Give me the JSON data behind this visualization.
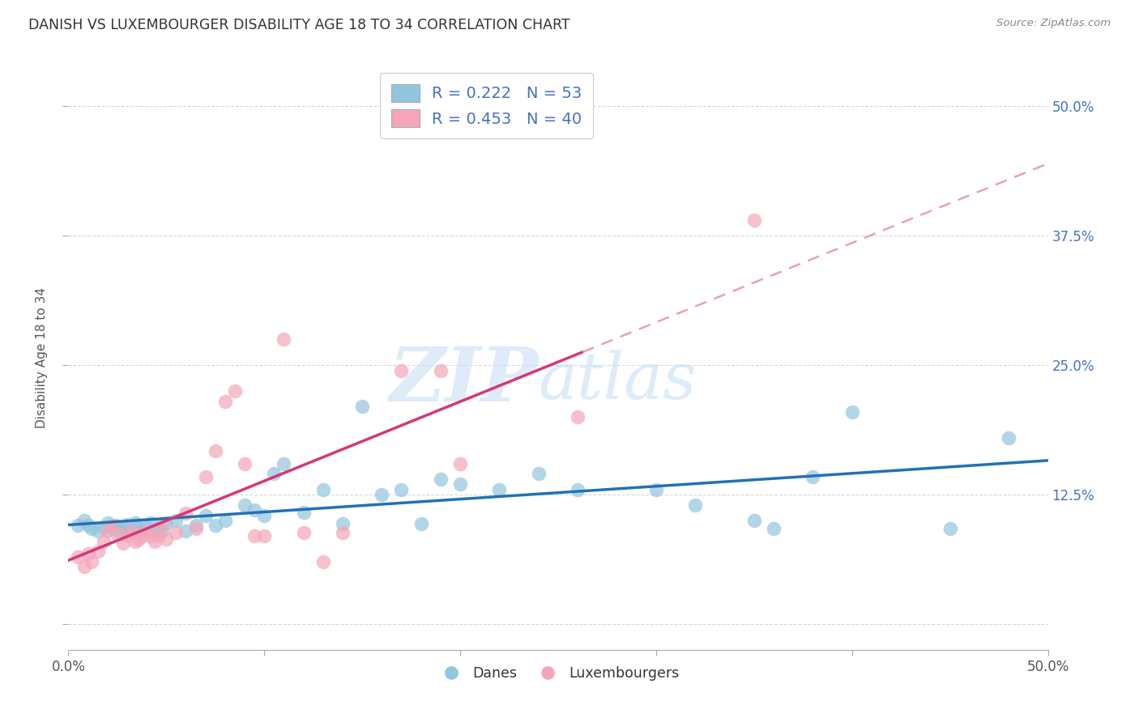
{
  "title": "DANISH VS LUXEMBOURGER DISABILITY AGE 18 TO 34 CORRELATION CHART",
  "source": "Source: ZipAtlas.com",
  "ylabel": "Disability Age 18 to 34",
  "xlim": [
    0.0,
    0.5
  ],
  "ylim": [
    -0.025,
    0.54
  ],
  "ytick_labels": [
    "",
    "12.5%",
    "25.0%",
    "37.5%",
    "50.0%"
  ],
  "ytick_values": [
    0.0,
    0.125,
    0.25,
    0.375,
    0.5
  ],
  "xtick_values": [
    0.0,
    0.1,
    0.2,
    0.3,
    0.4,
    0.5
  ],
  "blue_R": 0.222,
  "blue_N": 53,
  "pink_R": 0.453,
  "pink_N": 40,
  "blue_color": "#92c5de",
  "pink_color": "#f4a6b8",
  "blue_line_color": "#2171b5",
  "pink_line_color": "#d63775",
  "pink_dash_color": "#e8a0bc",
  "watermark_color": "#c8dff5",
  "background_color": "#ffffff",
  "grid_color": "#d8d8d8",
  "blue_scatter_x": [
    0.005,
    0.008,
    0.01,
    0.012,
    0.015,
    0.018,
    0.02,
    0.022,
    0.024,
    0.026,
    0.028,
    0.03,
    0.032,
    0.034,
    0.036,
    0.038,
    0.04,
    0.042,
    0.044,
    0.046,
    0.048,
    0.05,
    0.055,
    0.06,
    0.065,
    0.07,
    0.075,
    0.08,
    0.09,
    0.095,
    0.1,
    0.105,
    0.11,
    0.12,
    0.13,
    0.14,
    0.15,
    0.16,
    0.17,
    0.18,
    0.19,
    0.2,
    0.22,
    0.24,
    0.26,
    0.3,
    0.32,
    0.35,
    0.36,
    0.38,
    0.4,
    0.45,
    0.48
  ],
  "blue_scatter_y": [
    0.095,
    0.1,
    0.095,
    0.092,
    0.09,
    0.093,
    0.098,
    0.092,
    0.095,
    0.09,
    0.093,
    0.096,
    0.09,
    0.098,
    0.093,
    0.09,
    0.093,
    0.098,
    0.09,
    0.093,
    0.09,
    0.098,
    0.1,
    0.09,
    0.095,
    0.105,
    0.095,
    0.1,
    0.115,
    0.11,
    0.105,
    0.145,
    0.155,
    0.108,
    0.13,
    0.097,
    0.21,
    0.125,
    0.13,
    0.097,
    0.14,
    0.135,
    0.13,
    0.145,
    0.13,
    0.13,
    0.115,
    0.1,
    0.092,
    0.142,
    0.205,
    0.092,
    0.18
  ],
  "pink_scatter_x": [
    0.005,
    0.008,
    0.01,
    0.012,
    0.015,
    0.018,
    0.02,
    0.022,
    0.025,
    0.028,
    0.03,
    0.032,
    0.034,
    0.036,
    0.038,
    0.04,
    0.042,
    0.044,
    0.046,
    0.048,
    0.05,
    0.055,
    0.06,
    0.065,
    0.07,
    0.075,
    0.08,
    0.085,
    0.09,
    0.095,
    0.1,
    0.11,
    0.12,
    0.13,
    0.14,
    0.17,
    0.19,
    0.2,
    0.26,
    0.35
  ],
  "pink_scatter_y": [
    0.065,
    0.055,
    0.068,
    0.06,
    0.07,
    0.08,
    0.09,
    0.095,
    0.087,
    0.078,
    0.085,
    0.09,
    0.08,
    0.082,
    0.085,
    0.09,
    0.085,
    0.08,
    0.085,
    0.095,
    0.082,
    0.088,
    0.107,
    0.092,
    0.142,
    0.167,
    0.215,
    0.225,
    0.155,
    0.085,
    0.085,
    0.275,
    0.088,
    0.06,
    0.088,
    0.245,
    0.245,
    0.155,
    0.2,
    0.39
  ]
}
